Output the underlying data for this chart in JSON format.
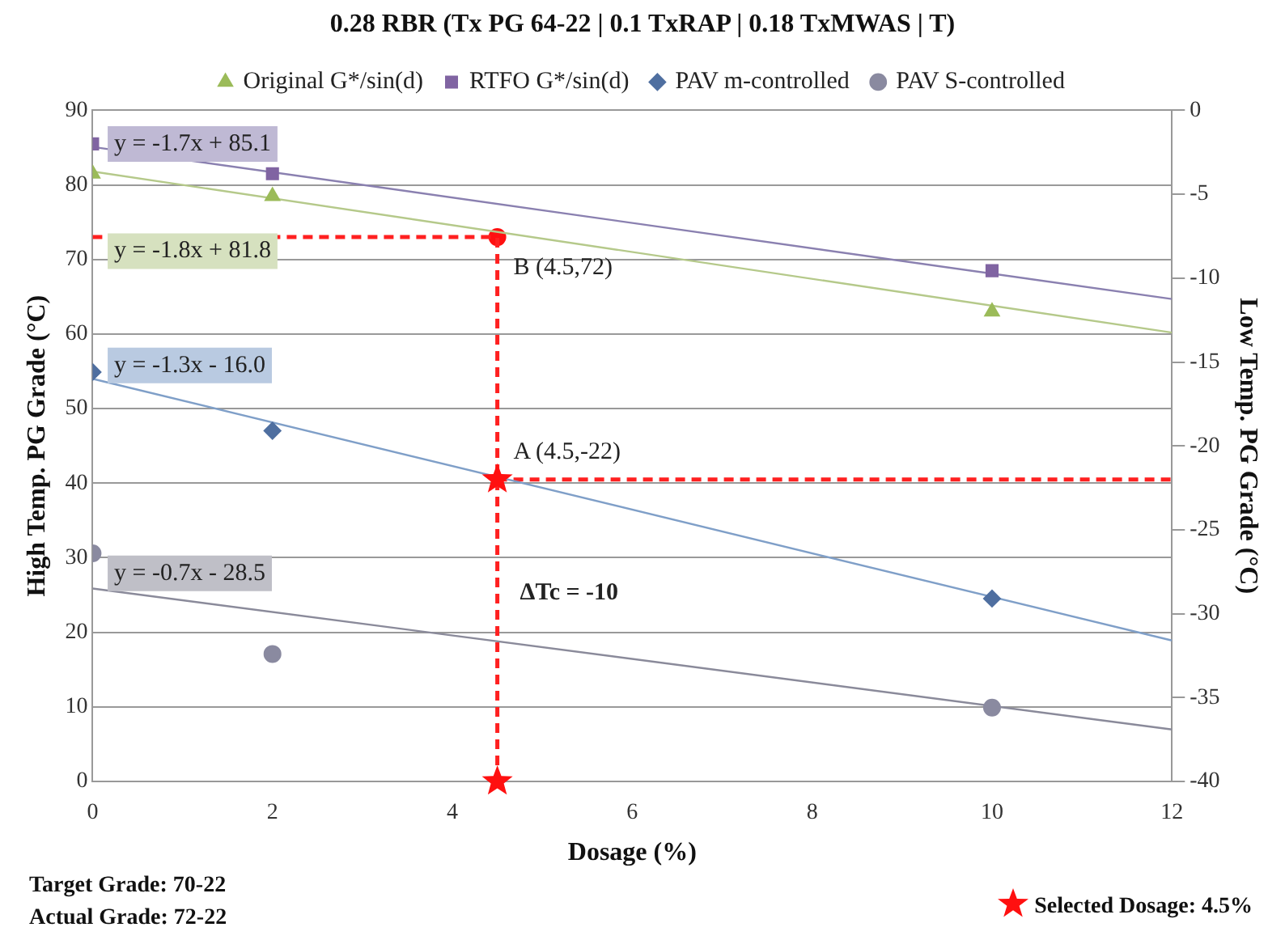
{
  "chart_data": {
    "type": "scatter",
    "title": "0.28 RBR (Tx PG 64-22 | 0.1 TxRAP | 0.18 TxMWAS | T)",
    "xlabel": "Dosage (%)",
    "ylabel": "High Temp. PG Grade (°C)",
    "y2label": "Low Temp. PG Grade (°C)",
    "xlim": [
      0,
      12
    ],
    "xticks": [
      0,
      2,
      4,
      6,
      8,
      10,
      12
    ],
    "ylim": [
      0,
      90
    ],
    "yticks": [
      0,
      10,
      20,
      30,
      40,
      50,
      60,
      70,
      80,
      90
    ],
    "y2lim": [
      -40,
      0
    ],
    "y2ticks": [
      -40,
      -35,
      -30,
      -25,
      -20,
      -15,
      -10,
      -5,
      0
    ],
    "grid": "y",
    "legend": "top",
    "series": [
      {
        "name": "Original G*/sin(d)",
        "marker": "triangle",
        "color": "#9bbb59",
        "x": [
          0,
          2,
          10
        ],
        "values": [
          81.5,
          78.5,
          63
        ]
      },
      {
        "name": "RTFO G*/sin(d)",
        "marker": "square",
        "color": "#8064a2",
        "x": [
          0,
          2,
          10
        ],
        "values": [
          85.5,
          81.5,
          68.5
        ]
      },
      {
        "name": "PAV m-controlled",
        "marker": "diamond",
        "color": "#4f6fa0",
        "axis": "y2",
        "x": [
          0,
          2,
          10
        ],
        "values": [
          -15.6,
          -19.1,
          -29.1
        ]
      },
      {
        "name": "PAV S-controlled",
        "marker": "circle",
        "color": "#8a8aa0",
        "axis": "y2",
        "x": [
          0,
          2,
          10
        ],
        "values": [
          -26.4,
          -32.4,
          -35.6
        ]
      },
      {
        "type": "line",
        "marker": "none",
        "color": "#b5c98a",
        "x": [
          0,
          12
        ],
        "values": [
          81.8,
          60.2
        ]
      },
      {
        "type": "line",
        "marker": "none",
        "color": "#8a80b0",
        "x": [
          0,
          12
        ],
        "values": [
          85.1,
          64.7
        ]
      },
      {
        "type": "line",
        "marker": "none",
        "color": "#7f9fc8",
        "axis": "y2",
        "x": [
          0,
          12
        ],
        "values": [
          -16.0,
          -31.6
        ]
      },
      {
        "type": "line",
        "marker": "none",
        "color": "#8a8a9a",
        "axis": "y2",
        "x": [
          0,
          12
        ],
        "values": [
          -28.5,
          -36.9
        ]
      },
      {
        "type": "line",
        "marker": "none",
        "line_style": "dashed",
        "color": "#ff2020",
        "x": [
          0,
          4.5
        ],
        "values": [
          73,
          73
        ]
      },
      {
        "type": "line",
        "marker": "none",
        "line_style": "dashed",
        "color": "#ff2020",
        "x": [
          4.5,
          4.5
        ],
        "values": [
          0,
          73
        ]
      },
      {
        "type": "line",
        "marker": "none",
        "line_style": "dashed",
        "color": "#ff2020",
        "axis": "y2",
        "x": [
          4.5,
          12
        ],
        "values": [
          -22,
          -22
        ]
      },
      {
        "type": "scatter",
        "marker": "circle",
        "color": "#ff1010",
        "x": [
          4.5
        ],
        "values": [
          73
        ]
      },
      {
        "type": "scatter",
        "marker": "star",
        "color": "#ff1010",
        "axis": "y2",
        "x": [
          4.5
        ],
        "values": [
          -22
        ]
      },
      {
        "type": "scatter",
        "marker": "star",
        "color": "#ff1010",
        "x": [
          4.5
        ],
        "values": [
          0
        ]
      }
    ],
    "annotations": [
      "y = -1.7x + 85.1",
      "y = -1.8x + 81.8",
      "y = -1.3x - 16.0",
      "y = -0.7x - 28.5",
      "B (4.5,72)",
      "A (4.5,-22)",
      "ΔTc = -10",
      "Target Grade: 70-22",
      "Actual Grade: 72-22",
      "Selected Dosage: 4.5%"
    ]
  }
}
